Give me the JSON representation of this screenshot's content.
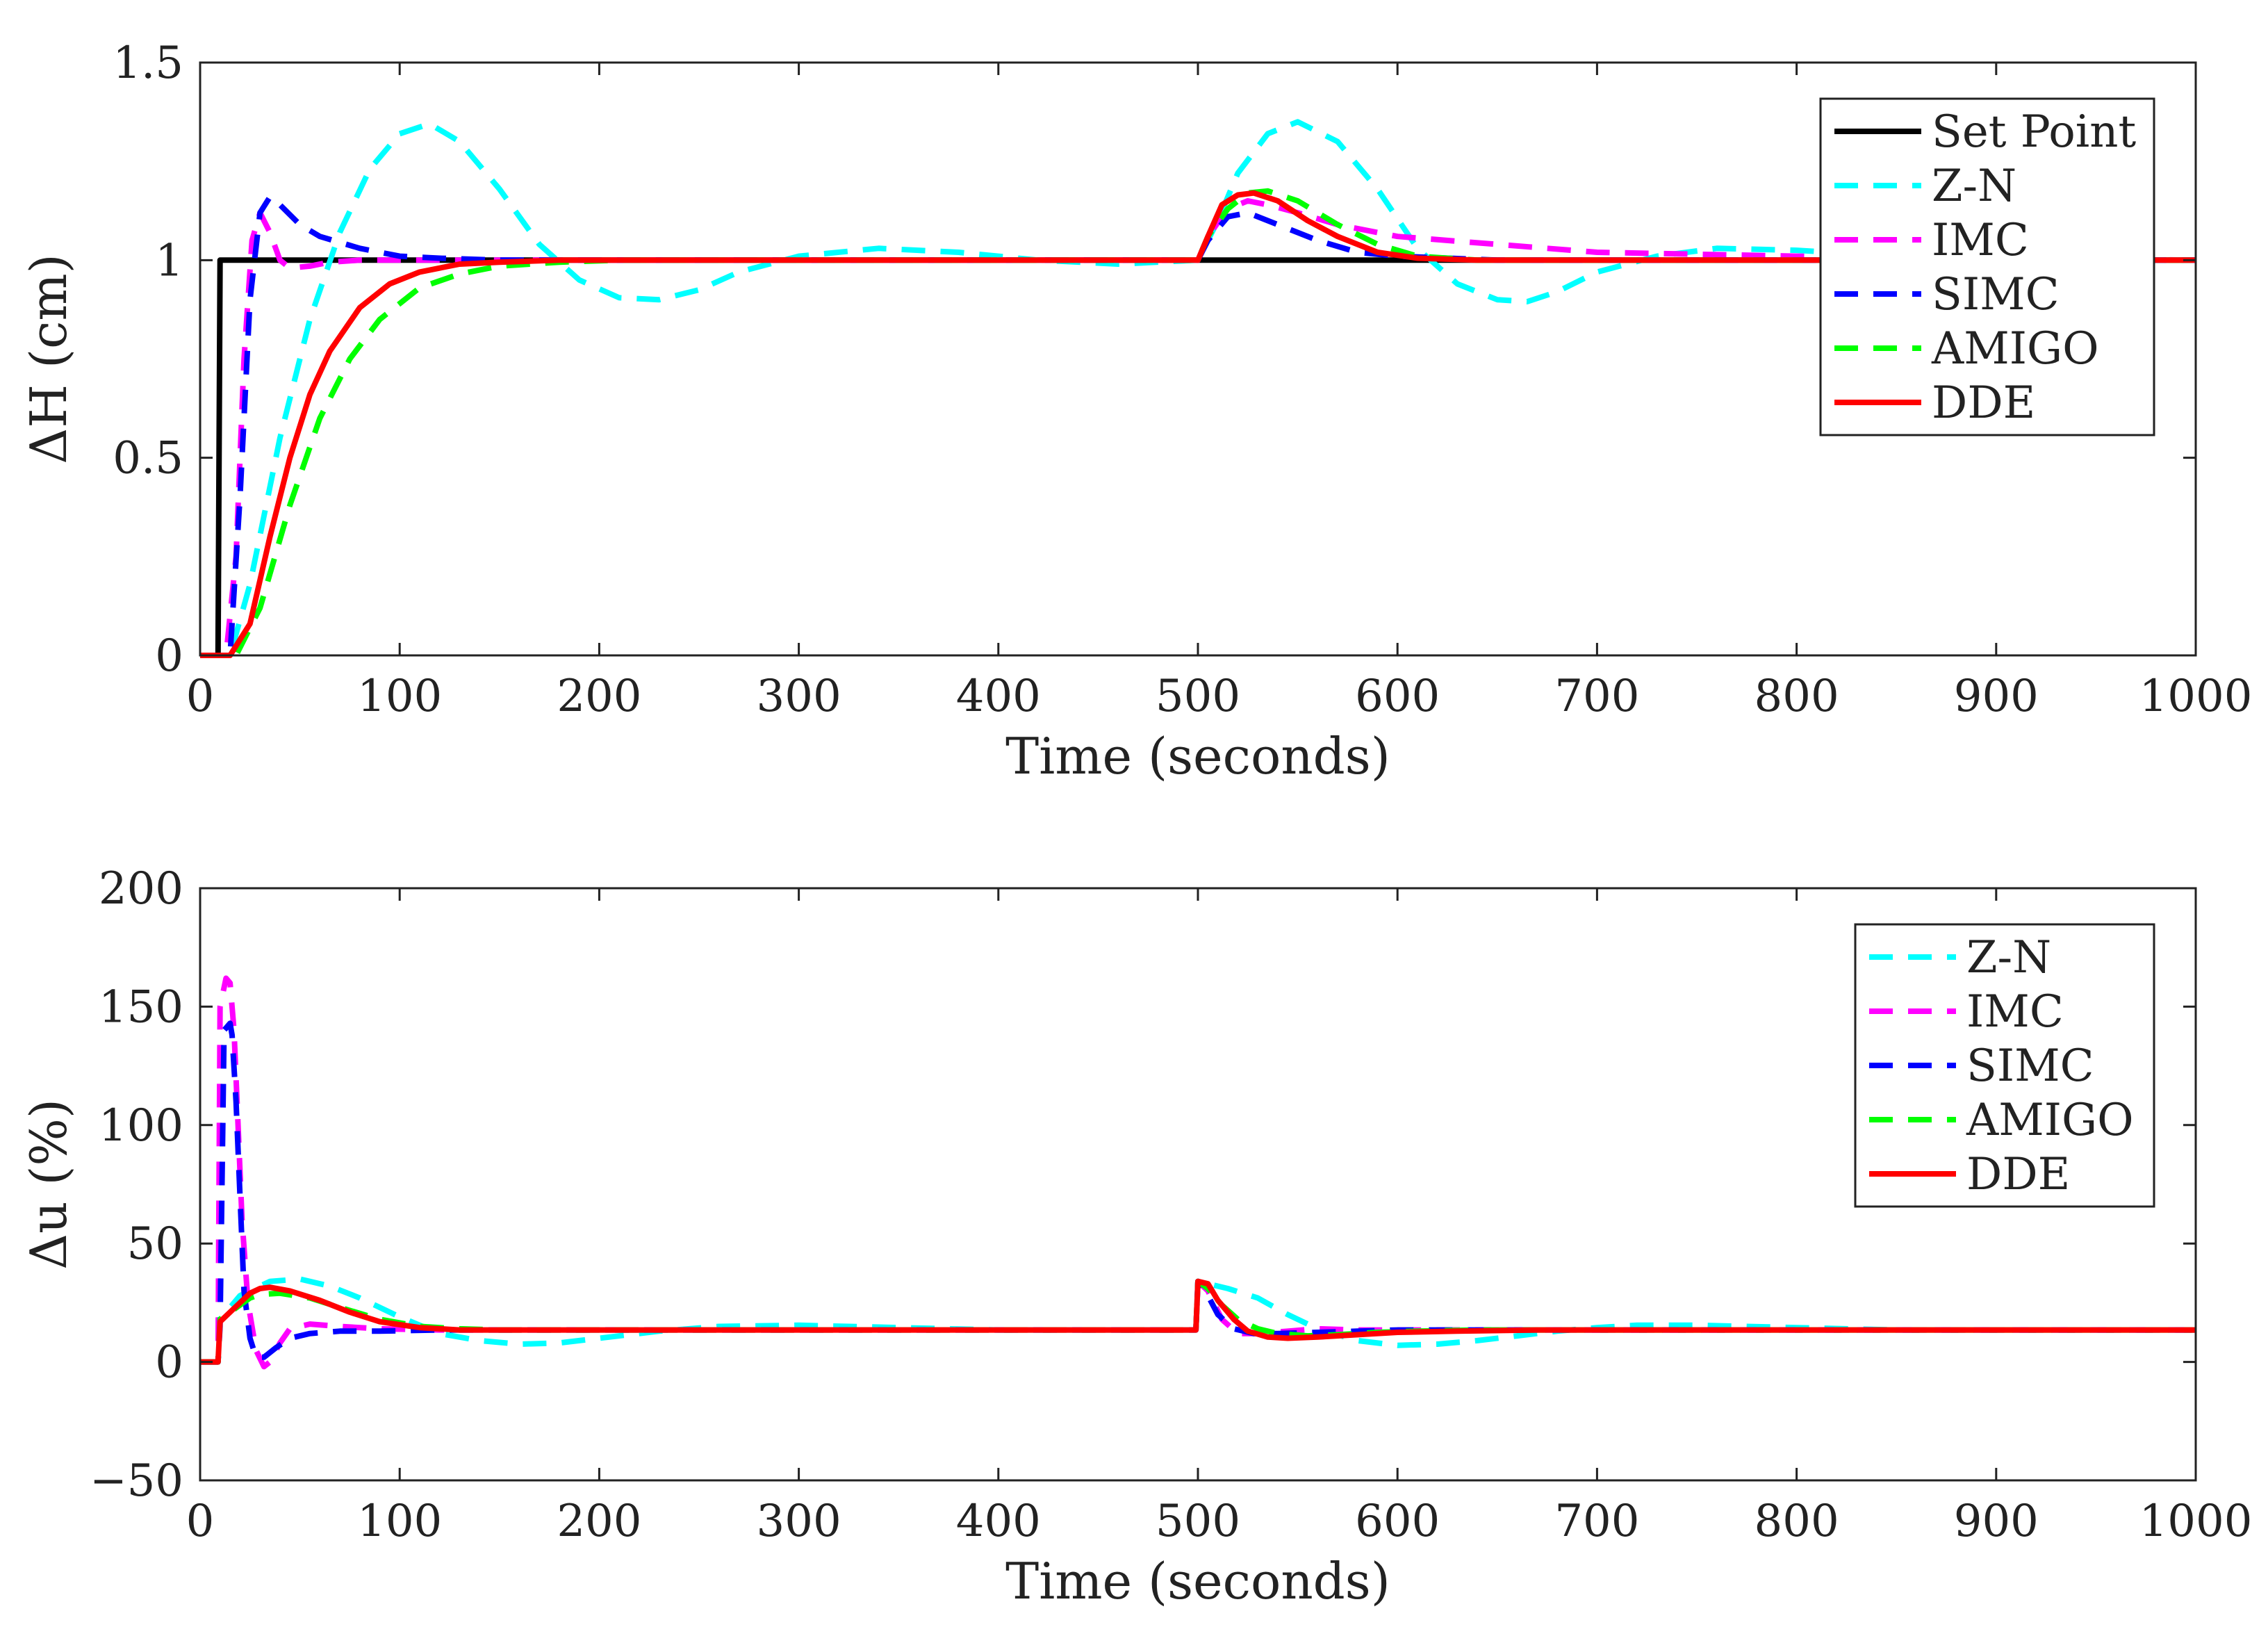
{
  "chart_data": [
    {
      "type": "line",
      "xlabel": "Time (seconds)",
      "ylabel": "ΔH (cm)",
      "xlim": [
        0,
        1000
      ],
      "ylim": [
        0,
        1.5
      ],
      "xticks": [
        0,
        100,
        200,
        300,
        400,
        500,
        600,
        700,
        800,
        900,
        1000
      ],
      "xtick_labels": [
        "0",
        "100",
        "200",
        "300",
        "400",
        "500",
        "600",
        "700",
        "800",
        "900",
        "1000"
      ],
      "yticks": [
        0,
        0.5,
        1,
        1.5
      ],
      "ytick_labels": [
        "0",
        "0.5",
        "1",
        "1.5"
      ],
      "legend_position": "top-right",
      "series": [
        {
          "name": "Set Point",
          "color": "#000000",
          "dash": "solid",
          "x": [
            0,
            9,
            10,
            1000
          ],
          "y": [
            0,
            0,
            1,
            1
          ]
        },
        {
          "name": "Z-N",
          "color": "#00ffff",
          "dash": "dashed",
          "x": [
            0,
            15,
            25,
            40,
            55,
            70,
            85,
            100,
            115,
            130,
            150,
            170,
            190,
            210,
            230,
            250,
            270,
            300,
            340,
            380,
            420,
            460,
            500,
            510,
            520,
            535,
            550,
            570,
            590,
            610,
            630,
            650,
            665,
            680,
            700,
            730,
            760,
            800,
            850,
            900,
            1000
          ],
          "y": [
            0,
            0,
            0.18,
            0.55,
            0.85,
            1.07,
            1.23,
            1.32,
            1.345,
            1.3,
            1.18,
            1.04,
            0.95,
            0.905,
            0.9,
            0.925,
            0.97,
            1.01,
            1.03,
            1.02,
            1.0,
            0.99,
            1.0,
            1.1,
            1.22,
            1.32,
            1.35,
            1.3,
            1.18,
            1.03,
            0.94,
            0.9,
            0.895,
            0.92,
            0.97,
            1.01,
            1.03,
            1.025,
            1.01,
            1.0,
            1.0
          ]
        },
        {
          "name": "IMC",
          "color": "#ff00ff",
          "dash": "dashed",
          "x": [
            0,
            13,
            18,
            22,
            26,
            30,
            35,
            40,
            45,
            55,
            65,
            80,
            100,
            500,
            505,
            515,
            525,
            535,
            550,
            570,
            600,
            650,
            700,
            800,
            1000
          ],
          "y": [
            0,
            0,
            0.25,
            0.75,
            1.05,
            1.12,
            1.07,
            1.0,
            0.98,
            0.985,
            0.995,
            1.0,
            1.0,
            1.0,
            1.06,
            1.13,
            1.15,
            1.14,
            1.12,
            1.09,
            1.06,
            1.04,
            1.02,
            1.01,
            1.0
          ]
        },
        {
          "name": "SIMC",
          "color": "#0000ff",
          "dash": "dashed",
          "x": [
            0,
            15,
            20,
            25,
            30,
            35,
            40,
            50,
            60,
            80,
            100,
            120,
            150,
            500,
            505,
            515,
            525,
            540,
            560,
            580,
            600,
            650,
            700,
            1000
          ],
          "y": [
            0,
            0,
            0.4,
            0.9,
            1.12,
            1.16,
            1.14,
            1.09,
            1.06,
            1.03,
            1.01,
            1.005,
            1.0,
            1.0,
            1.05,
            1.11,
            1.12,
            1.09,
            1.05,
            1.02,
            1.01,
            1.0,
            1.0,
            1.0
          ]
        },
        {
          "name": "AMIGO",
          "color": "#00ff00",
          "dash": "dashed",
          "x": [
            0,
            18,
            30,
            45,
            60,
            75,
            90,
            110,
            130,
            150,
            180,
            210,
            250,
            500,
            505,
            515,
            525,
            535,
            550,
            570,
            590,
            610,
            640,
            680,
            1000
          ],
          "y": [
            0,
            0,
            0.12,
            0.38,
            0.6,
            0.75,
            0.85,
            0.93,
            0.965,
            0.985,
            0.995,
            1.0,
            1.0,
            1.0,
            1.06,
            1.13,
            1.17,
            1.175,
            1.15,
            1.09,
            1.04,
            1.01,
            1.0,
            1.0,
            1.0
          ]
        },
        {
          "name": "DDE",
          "color": "#ff0000",
          "dash": "solid",
          "x": [
            0,
            15,
            25,
            35,
            45,
            55,
            65,
            80,
            95,
            110,
            130,
            150,
            180,
            500,
            505,
            512,
            520,
            528,
            540,
            555,
            570,
            590,
            610,
            640,
            680,
            1000
          ],
          "y": [
            0,
            0,
            0.08,
            0.3,
            0.5,
            0.66,
            0.77,
            0.88,
            0.94,
            0.97,
            0.99,
            0.995,
            1.0,
            1.0,
            1.06,
            1.14,
            1.165,
            1.17,
            1.15,
            1.1,
            1.06,
            1.02,
            1.005,
            1.0,
            1.0,
            1.0
          ]
        }
      ]
    },
    {
      "type": "line",
      "xlabel": "Time (seconds)",
      "ylabel": "Δu (%)",
      "xlim": [
        0,
        1000
      ],
      "ylim": [
        -50,
        200
      ],
      "xticks": [
        0,
        100,
        200,
        300,
        400,
        500,
        600,
        700,
        800,
        900,
        1000
      ],
      "xtick_labels": [
        "0",
        "100",
        "200",
        "300",
        "400",
        "500",
        "600",
        "700",
        "800",
        "900",
        "1000"
      ],
      "yticks": [
        -50,
        0,
        50,
        100,
        150,
        200
      ],
      "ytick_labels": [
        "−50",
        "0",
        "50",
        "100",
        "150",
        "200"
      ],
      "legend_position": "top-right",
      "series": [
        {
          "name": "Z-N",
          "color": "#00ffff",
          "dash": "dashed",
          "x": [
            0,
            9,
            10,
            20,
            35,
            50,
            65,
            80,
            100,
            120,
            140,
            160,
            180,
            200,
            230,
            260,
            300,
            350,
            400,
            450,
            499,
            500,
            505,
            515,
            530,
            545,
            560,
            580,
            600,
            620,
            640,
            660,
            680,
            700,
            720,
            750,
            800,
            850,
            900,
            1000
          ],
          "y": [
            0,
            0,
            18,
            28,
            34,
            35,
            32,
            27,
            19,
            12,
            9,
            7.5,
            8,
            10,
            13,
            15,
            15.5,
            14.5,
            13.5,
            13.5,
            13.5,
            34,
            33,
            31,
            27,
            20,
            14,
            9,
            7,
            7.5,
            9,
            11,
            13,
            14.5,
            15.5,
            15.5,
            14.5,
            13.5,
            13.5,
            13.5
          ]
        },
        {
          "name": "IMC",
          "color": "#ff00ff",
          "dash": "dashed",
          "x": [
            0,
            9,
            10,
            13,
            15,
            17,
            19,
            21,
            24,
            28,
            32,
            35,
            40,
            45,
            55,
            70,
            90,
            120,
            150,
            200,
            499,
            500,
            505,
            512,
            520,
            530,
            545,
            560,
            580,
            600,
            650,
            1000
          ],
          "y": [
            0,
            0,
            150,
            162,
            160,
            140,
            100,
            60,
            25,
            5,
            -2,
            0,
            8,
            14,
            16,
            15,
            14,
            13.5,
            13.5,
            13.5,
            13.5,
            34,
            30,
            18,
            12,
            12,
            13,
            14,
            13.5,
            13.5,
            13.5,
            13.5
          ]
        },
        {
          "name": "SIMC",
          "color": "#0000ff",
          "dash": "dashed",
          "x": [
            0,
            9,
            10,
            12,
            14,
            15,
            16,
            18,
            20,
            22,
            25,
            28,
            32,
            38,
            45,
            55,
            70,
            90,
            120,
            200,
            499,
            500,
            505,
            510,
            518,
            528,
            540,
            560,
            580,
            600,
            650,
            1000
          ],
          "y": [
            0,
            0,
            15,
            140,
            142,
            143,
            138,
            110,
            70,
            30,
            10,
            2,
            2,
            6,
            10,
            12,
            13,
            13,
            13.5,
            13.5,
            13.5,
            34,
            28,
            20,
            14,
            12,
            12,
            12.5,
            13,
            13.5,
            13.5,
            13.5
          ]
        },
        {
          "name": "AMIGO",
          "color": "#00ff00",
          "dash": "dashed",
          "x": [
            0,
            9,
            10,
            15,
            20,
            25,
            30,
            40,
            55,
            70,
            90,
            110,
            130,
            150,
            200,
            499,
            500,
            505,
            512,
            520,
            530,
            540,
            555,
            570,
            590,
            610,
            640,
            680,
            1000
          ],
          "y": [
            0,
            0,
            18,
            21,
            24,
            27,
            28.5,
            29,
            27,
            23,
            18,
            15,
            14,
            13.5,
            13.5,
            13.5,
            34,
            31,
            24,
            18,
            14,
            12,
            11,
            11.5,
            12.5,
            13,
            13.5,
            13.5,
            13.5
          ]
        },
        {
          "name": "DDE",
          "color": "#ff0000",
          "dash": "solid",
          "x": [
            0,
            9,
            10,
            15,
            20,
            25,
            30,
            35,
            45,
            60,
            75,
            90,
            110,
            130,
            150,
            200,
            499,
            500,
            505,
            510,
            518,
            525,
            535,
            545,
            560,
            580,
            600,
            630,
            670,
            1000
          ],
          "y": [
            0,
            0,
            17,
            21,
            25,
            29,
            31,
            31.5,
            30,
            26,
            21,
            17,
            14.5,
            13.5,
            13.5,
            13.5,
            13.5,
            34,
            33,
            26,
            18,
            13,
            10.5,
            10,
            10.5,
            11.5,
            12.5,
            13,
            13.5,
            13.5
          ]
        }
      ]
    }
  ]
}
